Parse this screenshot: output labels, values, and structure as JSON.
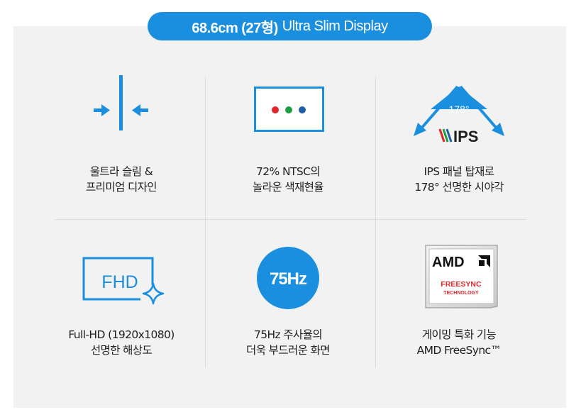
{
  "header": {
    "size_label": "68.6cm (27형)",
    "product_label": "Ultra Slim Display"
  },
  "features": [
    {
      "line1": "울트라 슬림 &",
      "line2": "프리미엄 디자인"
    },
    {
      "line1": "72% NTSC의",
      "line2": "놀라운 색재현율"
    },
    {
      "line1": "IPS 패널 탑재로",
      "line2": "178° 선명한 시야각",
      "badge": "178°",
      "logo": "IPS"
    },
    {
      "line1": "Full-HD (1920x1080)",
      "line2": "선명한 해상도",
      "badge": "FHD"
    },
    {
      "line1": "75Hz 주사율의",
      "line2": "더욱 부드러운 화면",
      "badge": "75Hz"
    },
    {
      "line1": "게이밍 특화 기능",
      "line2": "AMD FreeSync™",
      "logo_top": "AMD",
      "logo_mid": "FREESYNC",
      "logo_bot": "TECHNOLOGY"
    }
  ],
  "colors": {
    "accent": "#1a8fe0",
    "panel": "#f2f2f2",
    "divider": "#dcdcdc",
    "dot_red": "#e0262b",
    "dot_green": "#1e9e42",
    "dot_blue": "#1f5fa8"
  },
  "icons": [
    "slim-design-icon",
    "monitor-color-icon",
    "ips-viewing-angle-icon",
    "fhd-sparkle-icon",
    "refresh-rate-icon",
    "amd-freesync-logo"
  ]
}
